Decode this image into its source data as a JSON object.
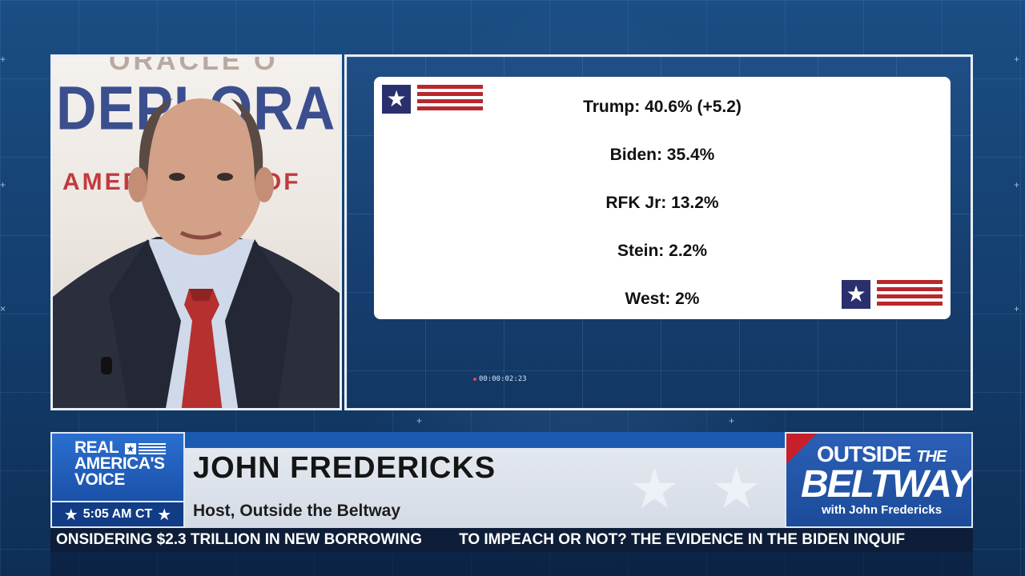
{
  "backdrop": {
    "top_text": "ORACLE O",
    "main_word": "DEPLORABL",
    "sub_text": "AMERICA   ILLAOF"
  },
  "poll": {
    "lines": [
      "Trump: 40.6% (+5.2)",
      "Biden: 35.4%",
      "RFK Jr: 13.2%",
      "Stein: 2.2%",
      "West: 2%"
    ],
    "timecode": "00:00:02:23"
  },
  "lower_third": {
    "network_logo": [
      "REAL",
      "AMERICA'S",
      "VOICE"
    ],
    "time": "5:05 AM CT",
    "host_name": "JOHN FREDERICKS",
    "host_title": "Host, Outside the Beltway",
    "show_logo": {
      "line1": "OUTSIDE",
      "line1b": "THE",
      "line2": "BELTWAY",
      "line3": "with John Fredericks"
    }
  },
  "ticker": {
    "items": [
      "ONSIDERING $2.3 TRILLION IN NEW BORROWING",
      "TO IMPEACH OR NOT? THE EVIDENCE IN THE BIDEN INQUIF"
    ]
  },
  "colors": {
    "background_blue": "#1b4e84",
    "flag_red": "#b8282c",
    "flag_navy": "#2a2f6e",
    "logo_blue": "#1d56b0"
  }
}
